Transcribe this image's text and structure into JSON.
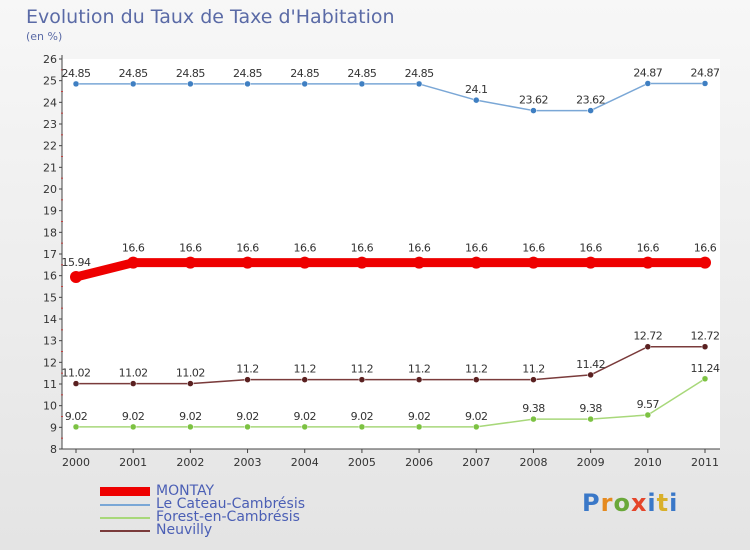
{
  "header": {
    "title": "Evolution du Taux de Taxe d'Habitation",
    "unit": "(en %)"
  },
  "logo": {
    "text": "Proxiti",
    "colors": [
      "#3a78c8",
      "#e58a1f",
      "#6aa83a",
      "#e5452a",
      "#3a78c8",
      "#d9b02a",
      "#3a78c8"
    ]
  },
  "chart_data": {
    "type": "line",
    "x": [
      "2000",
      "2001",
      "2002",
      "2003",
      "2004",
      "2005",
      "2006",
      "2007",
      "2008",
      "2009",
      "2010",
      "2011"
    ],
    "ylim": [
      8,
      26
    ],
    "yticks": [
      8,
      9,
      10,
      11,
      12,
      13,
      14,
      15,
      16,
      17,
      18,
      19,
      20,
      21,
      22,
      23,
      24,
      25,
      26
    ],
    "grid": false,
    "legend_position": "bottom-left",
    "series": [
      {
        "name": "MONTAY",
        "color": "#ee0000",
        "point_color": "#ee0000",
        "thick": true,
        "values": [
          15.94,
          16.6,
          16.6,
          16.6,
          16.6,
          16.6,
          16.6,
          16.6,
          16.6,
          16.6,
          16.6,
          16.6
        ],
        "labels": [
          "15.94",
          "16.6",
          "16.6",
          "16.6",
          "16.6",
          "16.6",
          "16.6",
          "16.6",
          "16.6",
          "16.6",
          "16.6",
          "16.6"
        ]
      },
      {
        "name": "Le Cateau-Cambrésis",
        "color": "#7aa7d6",
        "point_color": "#3f7fc2",
        "thick": false,
        "values": [
          24.85,
          24.85,
          24.85,
          24.85,
          24.85,
          24.85,
          24.85,
          24.1,
          23.62,
          23.62,
          24.87,
          24.87
        ],
        "labels": [
          "24.85",
          "24.85",
          "24.85",
          "24.85",
          "24.85",
          "24.85",
          "24.85",
          "24.1",
          "23.62",
          "23.62",
          "24.87",
          "24.87"
        ]
      },
      {
        "name": "Forest-en-Cambrésis",
        "color": "#a8d87a",
        "point_color": "#7cc242",
        "thick": false,
        "values": [
          9.02,
          9.02,
          9.02,
          9.02,
          9.02,
          9.02,
          9.02,
          9.02,
          9.38,
          9.38,
          9.57,
          11.24
        ],
        "labels": [
          "9.02",
          "9.02",
          "9.02",
          "9.02",
          "9.02",
          "9.02",
          "9.02",
          "9.02",
          "9.38",
          "9.38",
          "9.57",
          "11.24"
        ]
      },
      {
        "name": "Neuvilly",
        "color": "#7a3b3b",
        "point_color": "#5a2020",
        "thick": false,
        "values": [
          11.02,
          11.02,
          11.02,
          11.2,
          11.2,
          11.2,
          11.2,
          11.2,
          11.2,
          11.42,
          12.72,
          12.72
        ],
        "labels": [
          "11.02",
          "11.02",
          "11.02",
          "11.2",
          "11.2",
          "11.2",
          "11.2",
          "11.2",
          "11.2",
          "11.42",
          "12.72",
          "12.72"
        ]
      }
    ]
  }
}
